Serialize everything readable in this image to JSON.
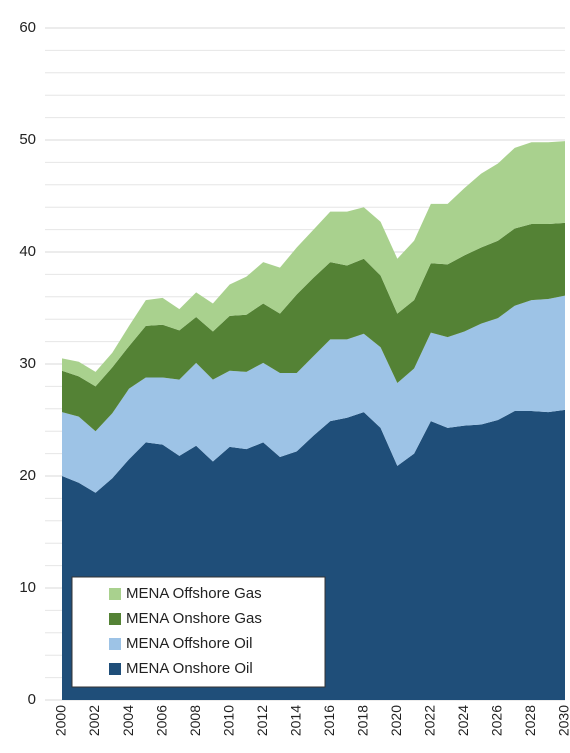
{
  "chart_data": {
    "type": "stacked-area",
    "x": [
      2000,
      2001,
      2002,
      2003,
      2004,
      2005,
      2006,
      2007,
      2008,
      2009,
      2010,
      2011,
      2012,
      2013,
      2014,
      2015,
      2016,
      2017,
      2018,
      2019,
      2020,
      2021,
      2022,
      2023,
      2024,
      2025,
      2026,
      2027,
      2028,
      2029,
      2030
    ],
    "xlim": [
      2000,
      2030
    ],
    "xticks": [
      2000,
      2002,
      2004,
      2006,
      2008,
      2010,
      2012,
      2014,
      2016,
      2018,
      2020,
      2022,
      2024,
      2026,
      2028,
      2030
    ],
    "ylim": [
      0,
      60
    ],
    "yticks": [
      0,
      10,
      20,
      30,
      40,
      50,
      60
    ],
    "minor_yticks": [
      2,
      4,
      6,
      8,
      12,
      14,
      16,
      18,
      22,
      24,
      26,
      28,
      32,
      34,
      36,
      38,
      42,
      44,
      46,
      48,
      52,
      54,
      56,
      58
    ],
    "grid": true,
    "legend": "lower left",
    "series": [
      {
        "name": "MENA Onshore Oil",
        "color": "#1f4e79",
        "values": [
          20.0,
          19.4,
          18.5,
          19.8,
          21.5,
          23.0,
          22.8,
          21.8,
          22.7,
          21.3,
          22.6,
          22.4,
          23.0,
          21.7,
          22.2,
          23.6,
          24.9,
          25.2,
          25.7,
          24.3,
          20.9,
          22.0,
          24.9,
          24.3,
          24.5,
          24.6,
          25.0,
          25.8,
          25.8,
          25.7,
          25.9
        ]
      },
      {
        "name": "MENA Offshore Oil",
        "color": "#9dc3e6",
        "values": [
          5.7,
          5.9,
          5.5,
          5.8,
          6.3,
          5.8,
          6.0,
          6.8,
          7.4,
          7.3,
          6.8,
          6.9,
          7.1,
          7.5,
          7.0,
          7.1,
          7.3,
          7.0,
          7.0,
          7.2,
          7.4,
          7.6,
          7.9,
          8.1,
          8.4,
          9.0,
          9.1,
          9.4,
          9.9,
          10.1,
          10.2
        ]
      },
      {
        "name": "MENA Onshore Gas",
        "color": "#548235",
        "values": [
          3.7,
          3.6,
          4.0,
          4.1,
          3.8,
          4.6,
          4.7,
          4.4,
          4.1,
          4.3,
          4.9,
          5.1,
          5.3,
          5.3,
          7.0,
          7.0,
          6.9,
          6.6,
          6.7,
          6.4,
          6.2,
          6.1,
          6.2,
          6.5,
          6.8,
          6.8,
          6.9,
          6.9,
          6.8,
          6.7,
          6.5
        ]
      },
      {
        "name": "MENA Offshore Gas",
        "color": "#a9d18e",
        "values": [
          1.1,
          1.3,
          1.3,
          1.3,
          1.8,
          2.3,
          2.4,
          1.9,
          2.2,
          2.5,
          2.8,
          3.4,
          3.7,
          4.1,
          4.2,
          4.3,
          4.5,
          4.8,
          4.6,
          4.8,
          4.9,
          5.3,
          5.3,
          5.4,
          6.0,
          6.6,
          6.9,
          7.2,
          7.3,
          7.3,
          7.3
        ]
      }
    ]
  }
}
